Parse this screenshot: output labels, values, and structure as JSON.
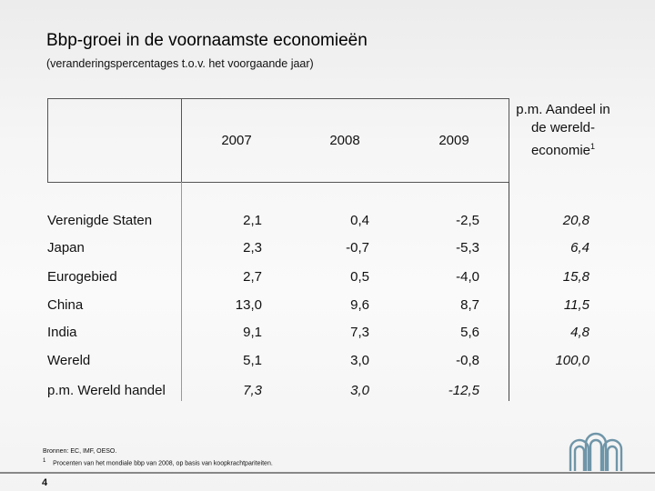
{
  "title": "Bbp-groei in de voornaamste economieën",
  "subtitle": "(veranderingspercentages t.o.v. het voorgaande jaar)",
  "table": {
    "columns": [
      "2007",
      "2008",
      "2009"
    ],
    "share_header": "p.m. Aandeel in de wereld-economie",
    "share_footnote_mark": "1",
    "rows": [
      {
        "label": "Verenigde Staten",
        "v2007": "2,1",
        "v2008": "0,4",
        "v2009": "-2,5",
        "share": "20,8"
      },
      {
        "label": "Japan",
        "v2007": "2,3",
        "v2008": "-0,7",
        "v2009": "-5,3",
        "share": "6,4"
      },
      {
        "label": "Eurogebied",
        "v2007": "2,7",
        "v2008": "0,5",
        "v2009": "-4,0",
        "share": "15,8"
      },
      {
        "label": "China",
        "v2007": "13,0",
        "v2008": "9,6",
        "v2009": "8,7",
        "share": "11,5"
      },
      {
        "label": "India",
        "v2007": "9,1",
        "v2008": "7,3",
        "v2009": "5,6",
        "share": "4,8"
      },
      {
        "label": "Wereld",
        "v2007": "5,1",
        "v2008": "3,0",
        "v2009": "-0,8",
        "share": "100,0"
      },
      {
        "label": "p.m. Wereld handel",
        "v2007": "7,3",
        "v2008": "3,0",
        "v2009": "-12,5",
        "share": ""
      }
    ]
  },
  "footnotes": {
    "sources": "Bronnen: EC, IMF, OESO.",
    "note_mark": "1",
    "note_text": "Procenten van het mondiale bbp van 2008, op basis van koopkrachtpariteiten."
  },
  "page_number": "4",
  "logo_icon": "nbb-logo-icon"
}
